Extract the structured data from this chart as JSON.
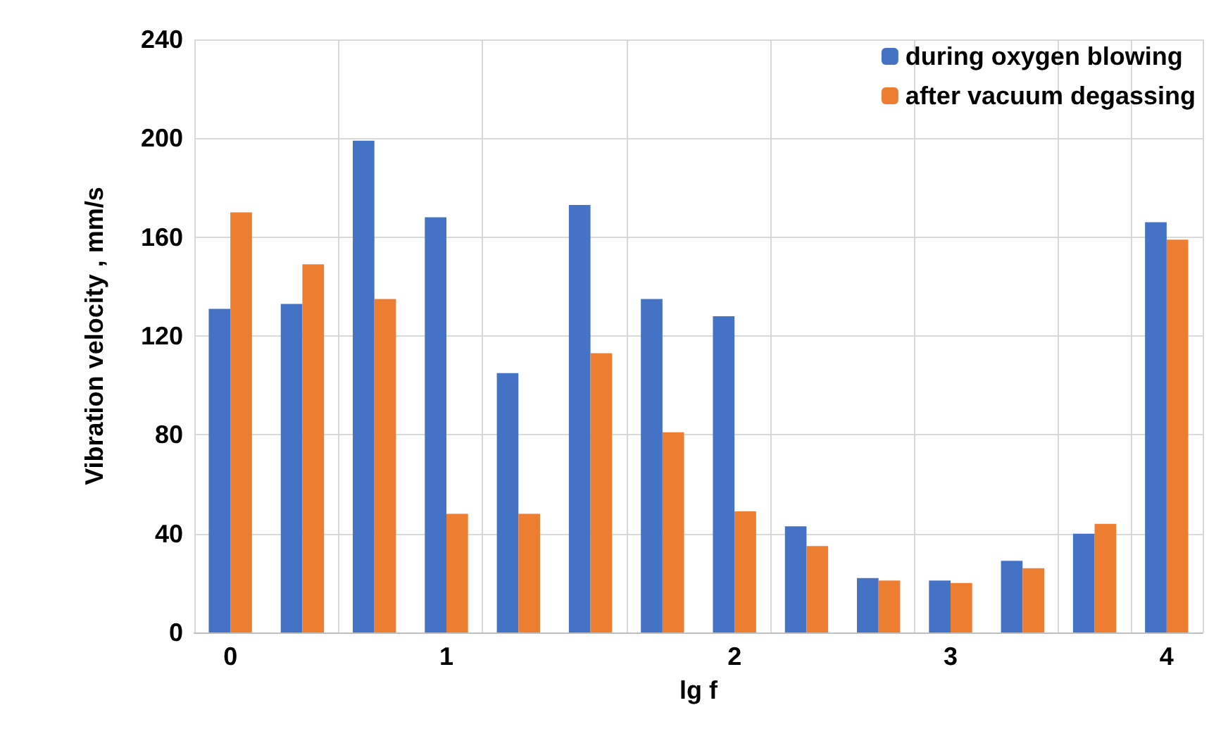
{
  "chart_data": {
    "type": "bar",
    "xlabel": "lg f",
    "ylabel": "Vibration velocity , mm/s",
    "categories": [
      "0",
      null,
      null,
      "1",
      null,
      null,
      null,
      "2",
      null,
      null,
      "3",
      null,
      null,
      "4"
    ],
    "series": [
      {
        "name": "during oxygen blowing",
        "color": "#4472c4",
        "values": [
          131,
          133,
          199,
          168,
          105,
          173,
          135,
          128,
          43,
          22,
          21,
          29,
          40,
          166
        ]
      },
      {
        "name": "after vacuum degassing",
        "color": "#ed7d31",
        "values": [
          170,
          149,
          135,
          48,
          48,
          113,
          81,
          49,
          35,
          21,
          20,
          26,
          44,
          159
        ]
      }
    ],
    "ylim": [
      0,
      240
    ],
    "yticks": [
      0,
      40,
      80,
      120,
      160,
      200,
      240
    ],
    "grid": true,
    "legend": "top right"
  }
}
